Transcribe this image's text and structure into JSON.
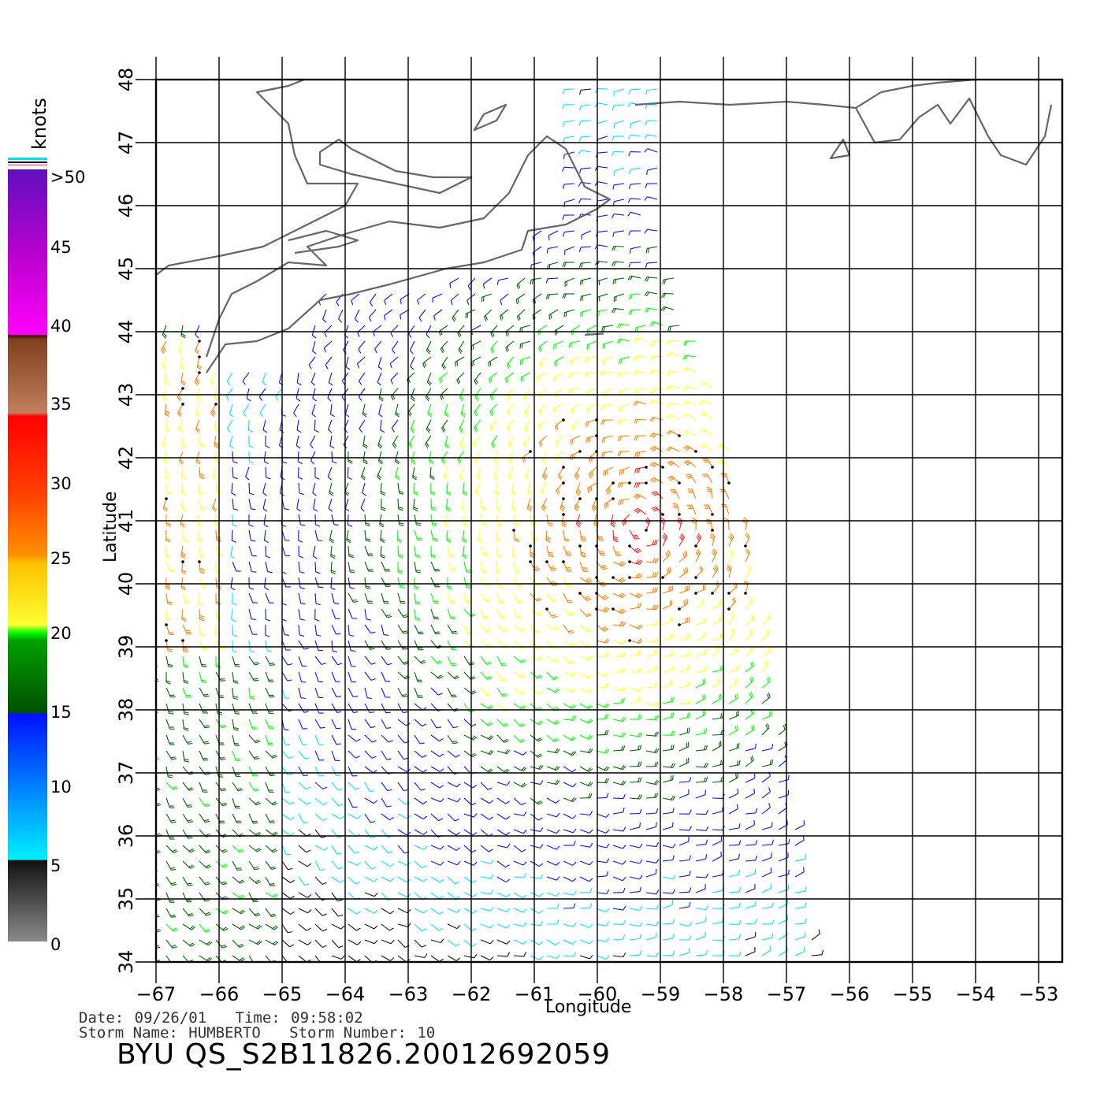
{
  "header": {},
  "meta": {
    "date_label": "Date:",
    "date": "09/26/01",
    "time_label": "Time:",
    "time": "09:58:02",
    "storm_name_label": "Storm Name:",
    "storm_name": "HUMBERTO",
    "storm_number_label": "Storm Number:",
    "storm_number": "10",
    "product_id": "BYU QS_S2B11826.20012692059"
  },
  "axes": {
    "xlabel": "Longitude",
    "ylabel": "Latitude",
    "lon_ticks": [
      "-67",
      "-66",
      "-65",
      "-64",
      "-63",
      "-62",
      "-61",
      "-60",
      "-59",
      "-58",
      "-57",
      "-56",
      "-55",
      "-54",
      "-53"
    ],
    "lat_ticks": [
      "34",
      "35",
      "36",
      "37",
      "38",
      "39",
      "40",
      "41",
      "42",
      "43",
      "44",
      "45",
      "46",
      "47",
      "48"
    ],
    "lon_range": [
      -67,
      -52.6
    ],
    "lat_range": [
      34,
      48
    ]
  },
  "colorbar": {
    "units": "knots",
    "labels": [
      ">50",
      "45",
      "40",
      "35",
      "30",
      "25",
      "20",
      "15",
      "10",
      "5",
      "0"
    ],
    "colors": {
      "gray": "#808080",
      "black": "#111111",
      "cyan": "#00e0ff",
      "blue": "#0010ff",
      "dark_green": "#006400",
      "green": "#00ff00",
      "yellow": "#ffff20",
      "orange": "#ff8000",
      "red": "#ff2020",
      "brown": "#5a1a10",
      "magenta": "#ff00ff",
      "purple": "#6010c0"
    }
  },
  "style": {
    "coast_color": "#666666",
    "grid_color": "#000000"
  }
}
